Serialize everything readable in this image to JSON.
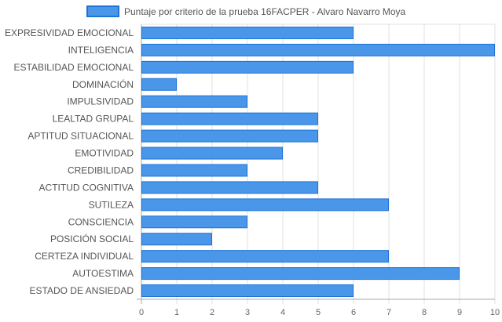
{
  "chart_data": {
    "type": "bar",
    "orientation": "horizontal",
    "title": "",
    "xlabel": "",
    "ylabel": "",
    "legend": {
      "position": "top",
      "entries": [
        "Puntaje por criterio de la prueba 16FACPER - Alvaro Navarro Moya"
      ]
    },
    "grid": true,
    "xlim": [
      0,
      10
    ],
    "x_ticks": [
      "0",
      "1",
      "2",
      "3",
      "4",
      "5",
      "6",
      "7",
      "8",
      "9",
      "10"
    ],
    "categories": [
      "EXPRESIVIDAD EMOCIONAL",
      "INTELIGENCIA",
      "ESTABILIDAD EMOCIONAL",
      "DOMINACIÓN",
      "IMPULSIVIDAD",
      "LEALTAD GRUPAL",
      "APTITUD SITUACIONAL",
      "EMOTIVIDAD",
      "CREDIBILIDAD",
      "ACTITUD COGNITIVA",
      "SUTILEZA",
      "CONSCIENCIA",
      "POSICIÓN SOCIAL",
      "CERTEZA INDIVIDUAL",
      "AUTOESTIMA",
      "ESTADO DE ANSIEDAD"
    ],
    "series": [
      {
        "name": "Puntaje por criterio de la prueba 16FACPER - Alvaro Navarro Moya",
        "values": [
          6,
          10,
          6,
          1,
          3,
          5,
          5,
          4,
          3,
          5,
          7,
          3,
          2,
          7,
          9,
          6
        ]
      }
    ],
    "colors": {
      "bar_fill": "#4a97ea",
      "bar_stroke": "#1e73d6",
      "grid": "#e0e0e0",
      "axis": "#aaaaaa"
    }
  }
}
